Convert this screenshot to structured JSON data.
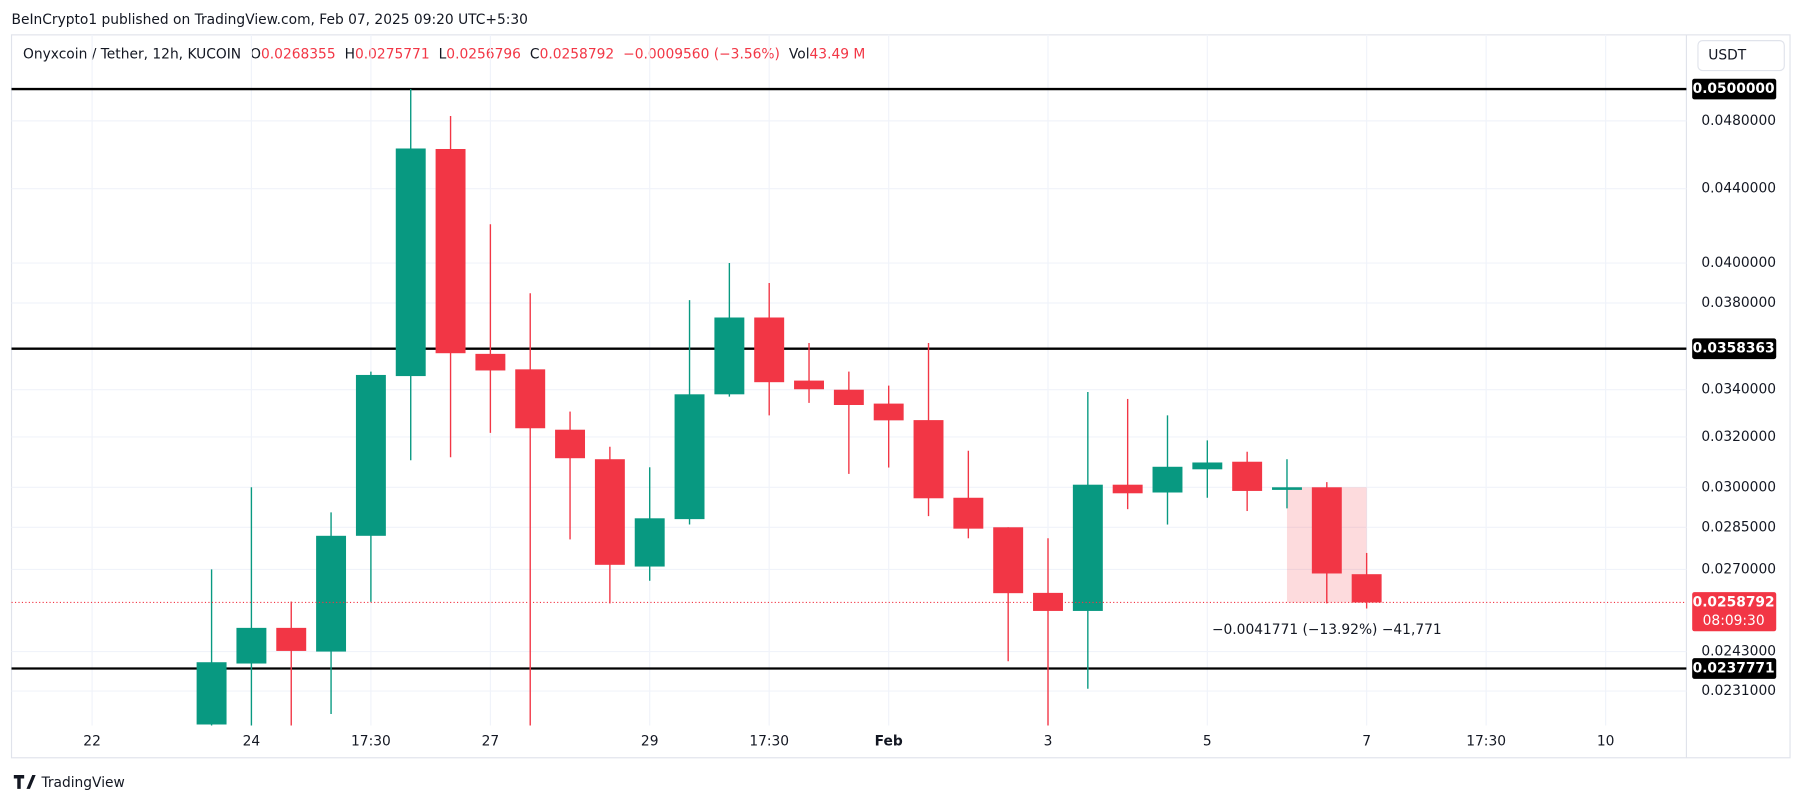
{
  "header": "BeInCrypto1 published on TradingView.com, Feb 07, 2025 09:20 UTC+5:30",
  "footer": "TradingView",
  "chart_data": {
    "type": "candlestick",
    "legend": {
      "symbol": "Onyxcoin / Tether, 12h, KUCOIN",
      "labels": [
        "O",
        "H",
        "L",
        "C"
      ],
      "change": "−0.0009560 (−3.56%)",
      "vol_label": "Vol",
      "vol": "43.49 M"
    },
    "currency": "USDT",
    "categories": [
      "22",
      null,
      null,
      null,
      "24",
      null,
      null,
      "17:30",
      null,
      null,
      "27",
      null,
      null,
      null,
      "29",
      null,
      null,
      "17:30",
      null,
      null,
      "Feb",
      null,
      null,
      null,
      "3",
      null,
      null,
      null,
      "5",
      null,
      null,
      null,
      "7",
      null,
      null,
      "17:30",
      null,
      null,
      "10"
    ],
    "open": [
      null,
      null,
      null,
      0.02213,
      0.02393,
      0.02505,
      0.0243,
      0.02819,
      0.0346,
      0.0463,
      0.0356,
      0.0349,
      0.0323,
      0.0311,
      0.0271,
      0.0288,
      0.0338,
      0.0373,
      0.0344,
      0.034,
      0.0334,
      0.0327,
      0.0296,
      0.0285,
      0.0262,
      0.0256,
      0.0301,
      0.0298,
      0.0307,
      0.031,
      0.0299,
      0.03,
      0.0268355,
      null,
      null,
      null,
      null,
      null,
      null
    ],
    "high": [
      null,
      null,
      null,
      0.027,
      0.03,
      0.02591,
      0.02905,
      0.0348,
      0.05,
      0.0483,
      0.04204,
      0.03848,
      0.03306,
      0.0316,
      0.03078,
      0.03814,
      0.04,
      0.03899,
      0.0361,
      0.0348,
      0.03418,
      0.0361,
      0.03144,
      0.0285,
      0.0281,
      0.0339,
      0.0336,
      0.0329,
      0.03186,
      0.0314,
      0.0311,
      0.0302,
      0.0275771,
      null,
      null,
      null,
      null,
      null,
      null
    ],
    "low": [
      null,
      null,
      null,
      0.022,
      0.022,
      0.022,
      0.02243,
      0.0259,
      0.03106,
      0.03118,
      0.03217,
      0.022,
      0.02806,
      0.02585,
      0.02661,
      0.0286,
      0.0337,
      0.0329,
      0.03343,
      0.03052,
      0.03077,
      0.02891,
      0.0281,
      0.024,
      0.022,
      0.02317,
      0.02917,
      0.0286,
      0.0296,
      0.0291,
      0.0292,
      0.02585,
      0.0256796,
      null,
      null,
      null,
      null,
      null,
      null
    ],
    "close": [
      null,
      null,
      null,
      0.02397,
      0.02505,
      0.02432,
      0.02819,
      0.03465,
      0.04633,
      0.03563,
      0.03485,
      0.03236,
      0.03114,
      0.02716,
      0.02883,
      0.0338,
      0.0373,
      0.03433,
      0.03402,
      0.03334,
      0.03269,
      0.02958,
      0.02845,
      0.02619,
      0.0256,
      0.0301,
      0.02977,
      0.0308,
      0.03097,
      0.02986,
      0.03,
      0.02686,
      0.0258792,
      null,
      null,
      null,
      null,
      null,
      null
    ],
    "up_color": "#089981",
    "down_color": "#f23645",
    "log_scale": true,
    "ylim": [
      0.0221,
      0.0536
    ],
    "yticks": [
      {
        "value": 0.048,
        "label": "0.0480000"
      },
      {
        "value": 0.044,
        "label": "0.0440000"
      },
      {
        "value": 0.04,
        "label": "0.0400000"
      },
      {
        "value": 0.038,
        "label": "0.0380000"
      },
      {
        "value": 0.034,
        "label": "0.0340000"
      },
      {
        "value": 0.032,
        "label": "0.0320000"
      },
      {
        "value": 0.03,
        "label": "0.0300000"
      },
      {
        "value": 0.0285,
        "label": "0.0285000"
      },
      {
        "value": 0.027,
        "label": "0.0270000"
      },
      {
        "value": 0.0243,
        "label": "0.0243000"
      },
      {
        "value": 0.0231,
        "label": "0.0231000"
      }
    ],
    "grid": true,
    "levels": [
      {
        "value": 0.05,
        "label": "0.0500000"
      },
      {
        "value": 0.0358363,
        "label": "0.0358363"
      },
      {
        "value": 0.0237771,
        "label": "0.0237771"
      }
    ],
    "last_price": {
      "value": 0.0258792,
      "label": "0.0258792",
      "countdown": "08:09:30"
    },
    "annotation": "−0.0041771 (−13.92%) −41,771"
  }
}
